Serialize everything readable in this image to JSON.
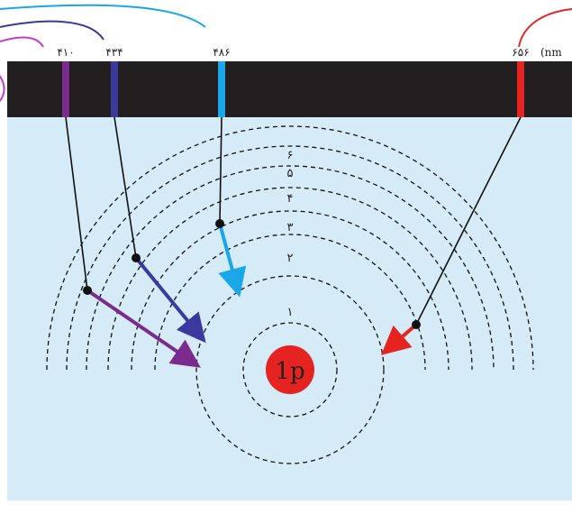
{
  "spectrum": {
    "unit_label": "(nm",
    "lines": [
      {
        "id": "violet",
        "label": "۴۱۰",
        "color": "#7B2A8E",
        "from_level": 6
      },
      {
        "id": "indigo",
        "label": "۴۳۴",
        "color": "#3A3A9E",
        "from_level": 5
      },
      {
        "id": "cyan",
        "label": "۴۸۶",
        "color": "#1AA7E8",
        "from_level": 4
      },
      {
        "id": "red",
        "label": "۶۵۶",
        "color": "#E52421",
        "from_level": 3
      }
    ]
  },
  "atom": {
    "nucleus_label": "1p",
    "nucleus_color": "#E52421",
    "orbit_labels": [
      "۱",
      "۲",
      "۳",
      "۴",
      "۵",
      "۶"
    ]
  },
  "colors": {
    "background": "#D6EBF8",
    "spectrum_band": "#231F20"
  }
}
